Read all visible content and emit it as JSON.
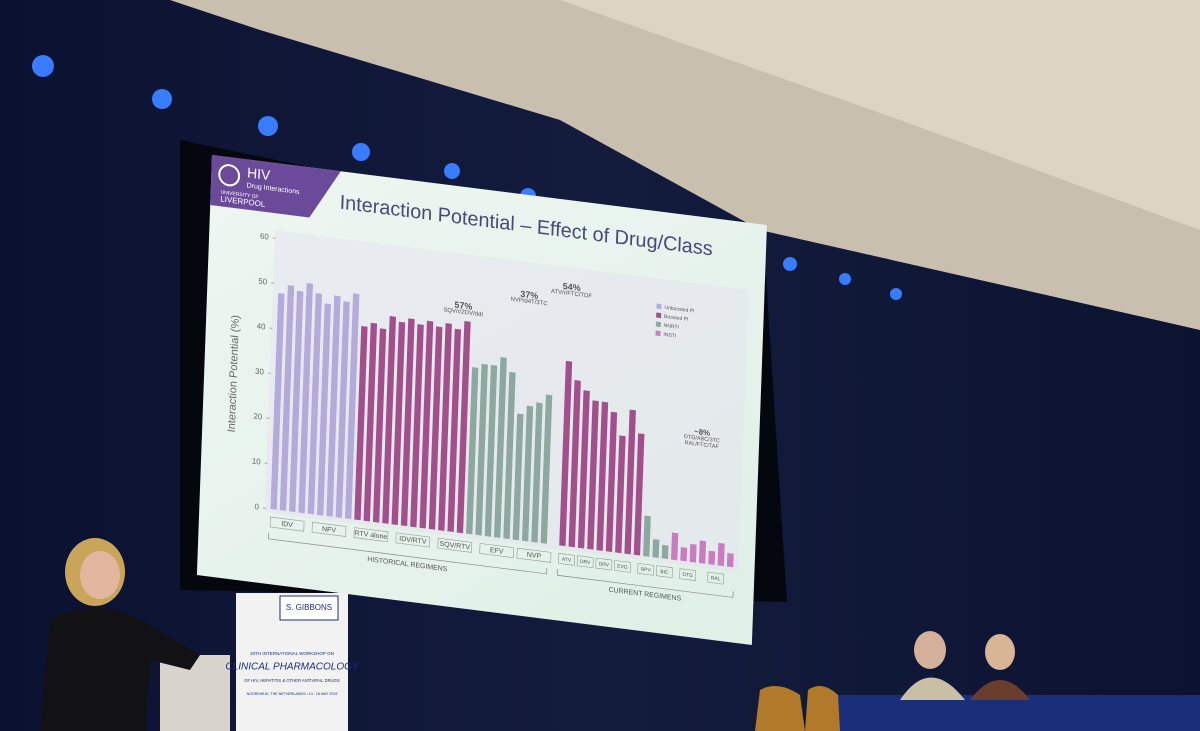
{
  "logo": {
    "title": "HIV",
    "subtitle": "Drug Interactions",
    "university": "UNIVERSITY OF",
    "name": "LIVERPOOL"
  },
  "chart_data": {
    "type": "bar",
    "title": "Interaction Potential – Effect of Drug/Class",
    "ylabel": "Interaction Potential (%)",
    "ylim": [
      0,
      60
    ],
    "yticks": [
      0,
      10,
      20,
      30,
      40,
      50,
      60
    ],
    "series": [
      {
        "name": "Unboosted PI",
        "color": "#b4aadb",
        "values": [
          48,
          50,
          49,
          51,
          49,
          47,
          49,
          48,
          50,
          null,
          null,
          null,
          null,
          null,
          null,
          null,
          null,
          null,
          null,
          null,
          null,
          null,
          null,
          null,
          null,
          null,
          null,
          null,
          null,
          null,
          null,
          null,
          null,
          null,
          null,
          null,
          null,
          null,
          null,
          null,
          null,
          null,
          null,
          null,
          null,
          null,
          null,
          null,
          null,
          null
        ]
      },
      {
        "name": "Boosted PI",
        "color": "#a24f8c",
        "values": [
          null,
          null,
          null,
          null,
          null,
          null,
          null,
          null,
          null,
          43,
          44,
          43,
          46,
          45,
          46,
          45,
          46,
          45,
          46,
          45,
          47,
          null,
          null,
          null,
          null,
          null,
          null,
          null,
          null,
          null,
          null,
          41,
          37,
          35,
          33,
          33,
          31,
          26,
          32,
          27,
          null,
          null,
          null,
          null,
          null,
          null,
          null,
          null,
          null,
          null
        ]
      },
      {
        "name": "NNRTI",
        "color": "#8da89f",
        "values": [
          null,
          null,
          null,
          null,
          null,
          null,
          null,
          null,
          null,
          null,
          null,
          null,
          null,
          null,
          null,
          null,
          null,
          null,
          null,
          null,
          null,
          37,
          38,
          38,
          40,
          37,
          28,
          30,
          31,
          33,
          null,
          null,
          null,
          null,
          null,
          null,
          null,
          null,
          null,
          null,
          9,
          4,
          3,
          null,
          null,
          null,
          null,
          null,
          null,
          null
        ]
      },
      {
        "name": "INSTI",
        "color": "#c97cc2",
        "values": [
          null,
          null,
          null,
          null,
          null,
          null,
          null,
          null,
          null,
          null,
          null,
          null,
          null,
          null,
          null,
          null,
          null,
          null,
          null,
          null,
          null,
          null,
          null,
          null,
          null,
          null,
          null,
          null,
          null,
          null,
          null,
          null,
          null,
          null,
          null,
          null,
          null,
          null,
          null,
          null,
          null,
          null,
          null,
          6,
          3,
          4,
          5,
          3,
          5,
          3
        ]
      }
    ],
    "annotations": [
      "57%",
      "SQV/r/ZDV/ddI",
      "37%",
      "NVP/d4T/3TC",
      "54%",
      "ATV/r/FTC/TDF",
      "~8%",
      "DTG/ABC/3TC",
      "RAL/FTC/TAF"
    ],
    "groups": [
      "IDV",
      "NFV",
      "RTV alone",
      "IDV/RTV",
      "SQV/RTV",
      "EFV",
      "NVP",
      "ATV",
      "DRV",
      "DRV",
      "EVG",
      "RPV",
      "BIC",
      "DTG",
      "RAL"
    ],
    "sections": [
      "HISTORICAL REGIMENS",
      "CURRENT REGIMENS"
    ]
  },
  "podium": {
    "name": "S. GIBBONS",
    "line1": "20TH INTERNATIONAL WORKSHOP ON",
    "line2": "CLINICAL PHARMACOLOGY",
    "line3": "OF HIV, HEPATITIS & OTHER ANTIVIRAL DRUGS",
    "line4": "NOORDWIJK, THE NETHERLANDS • 14 - 16 MAY 2019"
  }
}
